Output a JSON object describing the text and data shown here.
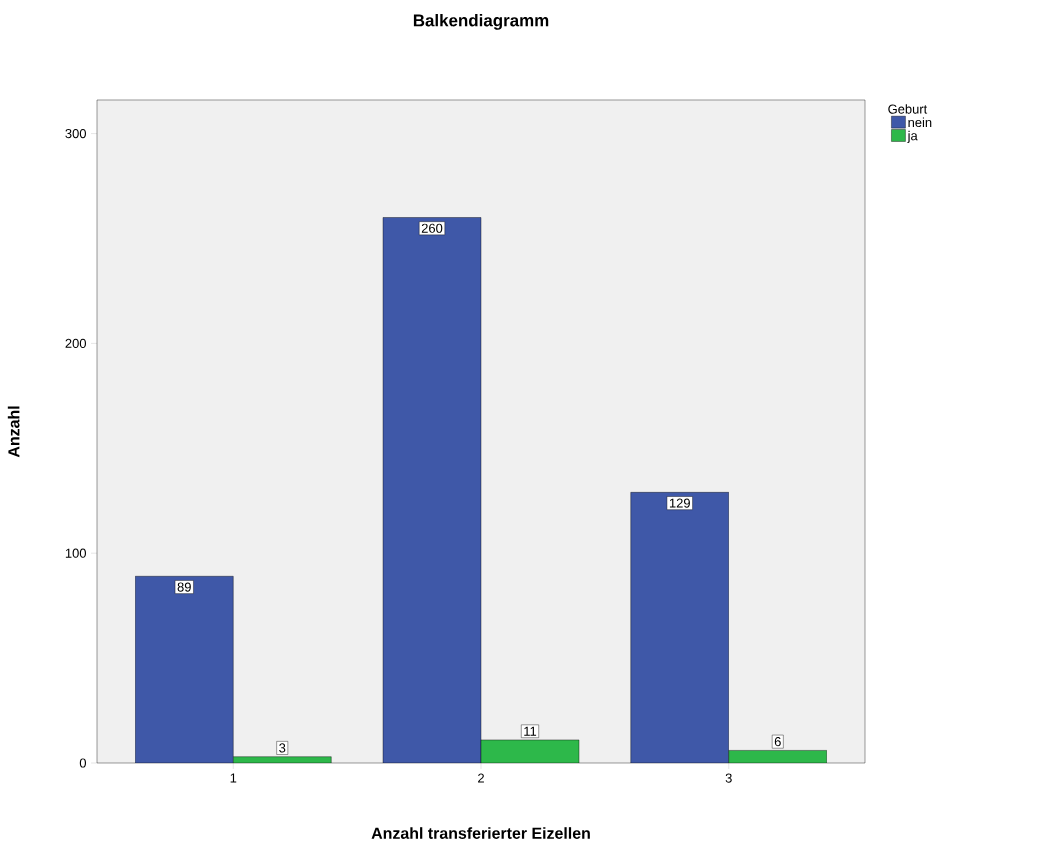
{
  "chart_data": {
    "type": "bar",
    "title": "Balkendiagramm",
    "xlabel": "Anzahl transferierter Eizellen",
    "ylabel": "Anzahl",
    "legend_title": "Geburt",
    "categories": [
      "1",
      "2",
      "3"
    ],
    "series": [
      {
        "name": "nein",
        "color": "#3f58a8",
        "values": [
          89,
          260,
          129
        ]
      },
      {
        "name": "ja",
        "color": "#2db84a",
        "values": [
          3,
          11,
          6
        ]
      }
    ],
    "ylim": [
      0,
      316
    ],
    "yticks": [
      0,
      100,
      200,
      300
    ],
    "grid": false,
    "legend": "top right",
    "data_labels": true
  }
}
